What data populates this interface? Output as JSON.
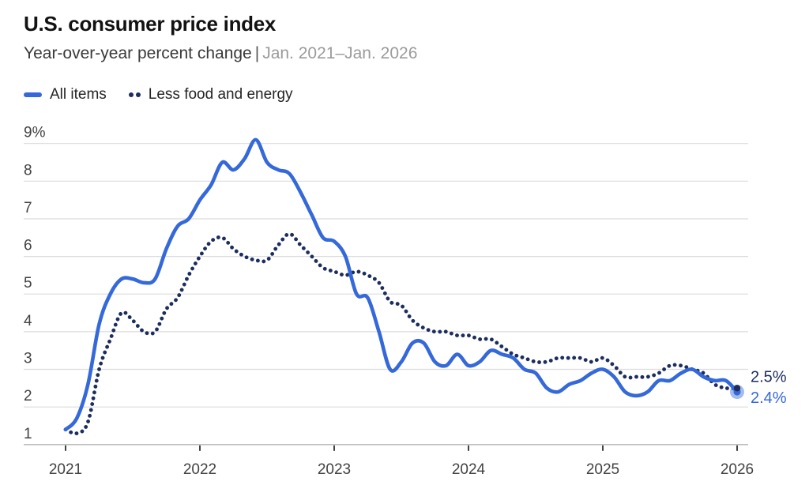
{
  "header": {
    "title": "U.S. consumer price index",
    "subtitle": "Year-over-year percent change",
    "separator": "|",
    "date_range": "Jan. 2021–Jan. 2026"
  },
  "legend": {
    "items": [
      {
        "label": "All items",
        "swatch": "solid-line"
      },
      {
        "label": "Less food and energy",
        "swatch": "dots"
      }
    ]
  },
  "colors": {
    "all_items_blue": "#3569d9",
    "core_navy": "#1c2d5e",
    "title_text": "#121212",
    "subtitle_text": "#3a3a3a",
    "muted_text": "#9b9b9b",
    "axis_text": "#424242",
    "gridline": "#dcdcde",
    "axis_line": "#b4b4b6"
  },
  "chart_data": {
    "type": "line",
    "x_unit": "month",
    "x_range": [
      "Jan 2021",
      "Jan 2026"
    ],
    "x_tick_labels": [
      "2021",
      "2022",
      "2023",
      "2024",
      "2025",
      "2026"
    ],
    "y_tick_labels": [
      "9%",
      "8",
      "7",
      "6",
      "5",
      "4",
      "3",
      "2",
      "1"
    ],
    "ylim": [
      1,
      9
    ],
    "grid": "horizontal",
    "legend_position": "top-left",
    "series": [
      {
        "name": "All items",
        "line_style": "solid",
        "color": "#3569d9",
        "end_label": "2.4%",
        "values": [
          1.4,
          1.7,
          2.6,
          4.2,
          5.0,
          5.4,
          5.4,
          5.3,
          5.4,
          6.2,
          6.8,
          7.0,
          7.5,
          7.9,
          8.5,
          8.3,
          8.6,
          9.1,
          8.5,
          8.3,
          8.2,
          7.7,
          7.1,
          6.5,
          6.4,
          6.0,
          5.0,
          4.9,
          4.0,
          3.0,
          3.2,
          3.7,
          3.7,
          3.2,
          3.1,
          3.4,
          3.1,
          3.2,
          3.5,
          3.4,
          3.3,
          3.0,
          2.9,
          2.5,
          2.4,
          2.6,
          2.7,
          2.9,
          3.0,
          2.8,
          2.4,
          2.3,
          2.4,
          2.7,
          2.7,
          2.9,
          3.0,
          2.8,
          2.7,
          2.7,
          2.4
        ]
      },
      {
        "name": "Less food and energy",
        "line_style": "dotted",
        "color": "#1c2d5e",
        "end_label": "2.5%",
        "values": [
          1.4,
          1.3,
          1.6,
          3.0,
          3.8,
          4.5,
          4.3,
          4.0,
          4.0,
          4.6,
          4.9,
          5.5,
          6.0,
          6.4,
          6.5,
          6.2,
          6.0,
          5.9,
          5.9,
          6.3,
          6.6,
          6.3,
          6.0,
          5.7,
          5.6,
          5.5,
          5.6,
          5.5,
          5.3,
          4.8,
          4.7,
          4.3,
          4.1,
          4.0,
          4.0,
          3.9,
          3.9,
          3.8,
          3.8,
          3.6,
          3.4,
          3.3,
          3.2,
          3.2,
          3.3,
          3.3,
          3.3,
          3.2,
          3.3,
          3.1,
          2.8,
          2.8,
          2.8,
          2.9,
          3.1,
          3.1,
          3.0,
          2.9,
          2.6,
          2.5,
          2.5
        ]
      }
    ]
  }
}
